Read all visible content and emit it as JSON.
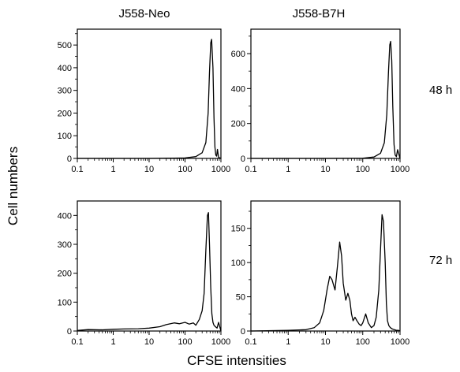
{
  "figure": {
    "col_titles": [
      "J558-Neo",
      "J558-B7H"
    ],
    "row_labels": [
      "48 h",
      "72 h"
    ],
    "ylabel": "Cell numbers",
    "xlabel": "CFSE intensities"
  },
  "chart_data": [
    {
      "type": "line",
      "title": "J558-Neo",
      "row_label": "48 h",
      "x_scale": "log",
      "xlim": [
        0.1,
        1000
      ],
      "ylim": [
        0,
        570
      ],
      "xticks": [
        0.1,
        1,
        10,
        100,
        1000
      ],
      "xtick_labels": [
        "0.1",
        "1",
        "10",
        "100",
        "1000"
      ],
      "yticks": [
        0,
        100,
        200,
        300,
        400,
        500
      ],
      "ytick_labels": [
        "0",
        "100",
        "200",
        "300",
        "400",
        "500"
      ],
      "grid": false,
      "series": [
        {
          "x": [
            0.1,
            1,
            10,
            50,
            100,
            200,
            300,
            380,
            440,
            480,
            520,
            550,
            600,
            640,
            680,
            720,
            760,
            800,
            860,
            1000
          ],
          "y": [
            0,
            0,
            0,
            1,
            2,
            8,
            25,
            70,
            200,
            380,
            510,
            525,
            400,
            180,
            50,
            15,
            10,
            40,
            5,
            0
          ]
        }
      ]
    },
    {
      "type": "line",
      "title": "J558-B7H",
      "row_label": "48 h",
      "x_scale": "log",
      "xlim": [
        0.1,
        1000
      ],
      "ylim": [
        0,
        740
      ],
      "xticks": [
        0.1,
        1,
        10,
        100,
        1000
      ],
      "xtick_labels": [
        "0.1",
        "1",
        "10",
        "100",
        "1000"
      ],
      "yticks": [
        0,
        200,
        400,
        600
      ],
      "ytick_labels": [
        "0",
        "200",
        "400",
        "600"
      ],
      "grid": false,
      "series": [
        {
          "x": [
            0.1,
            1,
            10,
            100,
            200,
            300,
            380,
            440,
            490,
            530,
            560,
            600,
            640,
            690,
            740,
            800,
            860,
            1000
          ],
          "y": [
            0,
            0,
            0,
            1,
            8,
            30,
            90,
            250,
            500,
            650,
            670,
            560,
            300,
            80,
            20,
            10,
            50,
            0
          ]
        }
      ]
    },
    {
      "type": "line",
      "title": "J558-Neo",
      "row_label": "72 h",
      "x_scale": "log",
      "xlim": [
        0.1,
        1000
      ],
      "ylim": [
        0,
        450
      ],
      "xticks": [
        0.1,
        1,
        10,
        100,
        1000
      ],
      "xtick_labels": [
        "0.1",
        "1",
        "10",
        "100",
        "1000"
      ],
      "yticks": [
        0,
        100,
        200,
        300,
        400
      ],
      "ytick_labels": [
        "0",
        "100",
        "200",
        "300",
        "400"
      ],
      "grid": false,
      "series": [
        {
          "x": [
            0.1,
            0.2,
            0.5,
            1,
            2,
            5,
            10,
            20,
            30,
            50,
            70,
            100,
            130,
            170,
            200,
            250,
            300,
            340,
            380,
            420,
            450,
            480,
            520,
            560,
            600,
            640,
            700,
            780,
            860,
            1000
          ],
          "y": [
            2,
            5,
            4,
            6,
            7,
            8,
            10,
            15,
            22,
            28,
            25,
            30,
            24,
            28,
            20,
            40,
            70,
            130,
            280,
            400,
            410,
            300,
            150,
            60,
            30,
            20,
            15,
            10,
            30,
            0
          ]
        }
      ]
    },
    {
      "type": "line",
      "title": "J558-B7H",
      "row_label": "72 h",
      "x_scale": "log",
      "xlim": [
        0.1,
        1000
      ],
      "ylim": [
        0,
        190
      ],
      "xticks": [
        0.1,
        1,
        10,
        100,
        1000
      ],
      "xtick_labels": [
        "0.1",
        "1",
        "10",
        "100",
        "1000"
      ],
      "yticks": [
        0,
        50,
        100,
        150
      ],
      "ytick_labels": [
        "0",
        "50",
        "100",
        "150"
      ],
      "grid": false,
      "series": [
        {
          "x": [
            0.1,
            1,
            3,
            5,
            7,
            9,
            11,
            13,
            15,
            18,
            21,
            24,
            27,
            30,
            35,
            40,
            45,
            50,
            55,
            62,
            70,
            80,
            90,
            100,
            120,
            140,
            170,
            200,
            230,
            270,
            300,
            330,
            360,
            400,
            430,
            460,
            500,
            550,
            620,
            700,
            800,
            900,
            1000
          ],
          "y": [
            0,
            1,
            2,
            5,
            12,
            30,
            60,
            80,
            75,
            60,
            95,
            130,
            110,
            70,
            45,
            55,
            45,
            25,
            15,
            20,
            15,
            10,
            8,
            12,
            25,
            12,
            5,
            8,
            20,
            60,
            120,
            170,
            160,
            100,
            40,
            15,
            8,
            5,
            3,
            2,
            1,
            1,
            0
          ]
        }
      ]
    }
  ]
}
